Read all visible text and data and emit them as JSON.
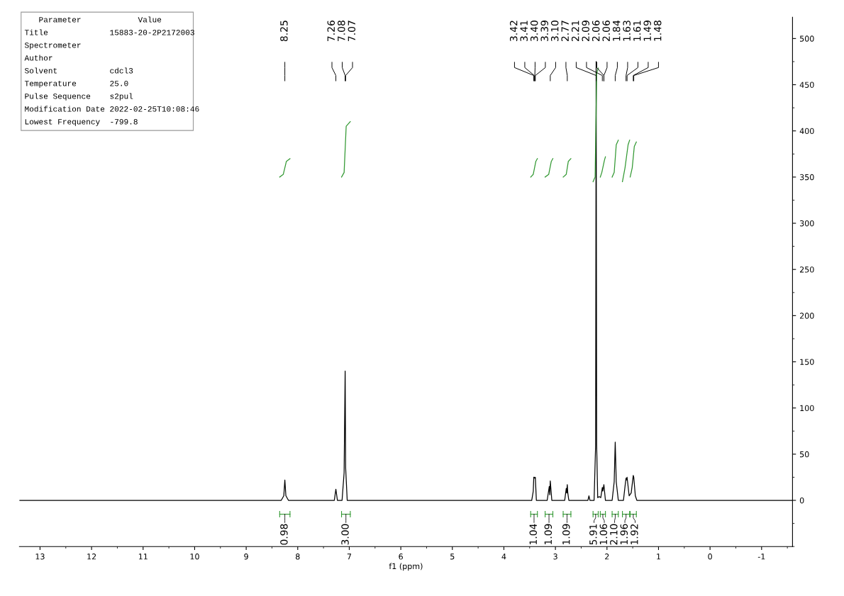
{
  "chart_data": {
    "type": "line",
    "xlabel": "f1 (ppm)",
    "xlim": [
      13.4,
      -1.6
    ],
    "ylim": [
      -50,
      523
    ],
    "xticks": [
      13,
      12,
      11,
      10,
      9,
      8,
      7,
      6,
      5,
      4,
      3,
      2,
      1,
      0,
      -1
    ],
    "yticks": [
      0,
      50,
      100,
      150,
      200,
      250,
      300,
      350,
      400,
      450,
      500
    ],
    "grid": false,
    "legend": false,
    "marker": "none",
    "line_style": "solid",
    "series": [
      {
        "color": "#000000",
        "x": [
          13.4,
          8.32,
          8.27,
          8.25,
          8.23,
          8.18,
          7.29,
          7.26,
          7.23,
          7.14,
          7.1,
          7.08,
          7.07,
          7.04,
          3.46,
          3.43,
          3.42,
          3.41,
          3.4,
          3.39,
          3.37,
          3.16,
          3.12,
          3.11,
          3.1,
          3.07,
          2.82,
          2.79,
          2.78,
          2.77,
          2.76,
          2.74,
          2.37,
          2.35,
          2.33,
          2.25,
          2.22,
          2.21,
          2.2,
          2.18,
          2.15,
          2.12,
          2.09,
          2.08,
          2.06,
          2.03,
          1.9,
          1.86,
          1.84,
          1.82,
          1.78,
          1.68,
          1.64,
          1.63,
          1.62,
          1.61,
          1.57,
          1.53,
          1.49,
          1.48,
          1.45,
          1.42,
          -1.6
        ],
        "values": [
          0,
          0,
          5,
          22,
          5,
          0,
          0,
          12,
          0,
          0,
          30,
          140,
          35,
          0,
          0,
          10,
          25,
          25,
          24,
          25,
          0,
          0,
          15,
          6,
          21,
          0,
          0,
          13,
          8,
          17,
          8,
          0,
          0,
          5,
          0,
          0,
          60,
          475,
          60,
          3,
          4,
          3,
          14,
          10,
          17,
          0,
          0,
          20,
          63,
          20,
          0,
          0,
          20,
          24,
          22,
          25,
          5,
          8,
          27,
          25,
          5,
          0,
          0
        ]
      },
      {
        "color": "#339933",
        "x": [
          8.35,
          8.28,
          8.22,
          8.15
        ],
        "values": [
          350,
          353,
          367,
          370
        ]
      },
      {
        "color": "#339933",
        "x": [
          7.15,
          7.1,
          7.06,
          6.98
        ],
        "values": [
          350,
          355,
          405,
          410
        ]
      },
      {
        "color": "#339933",
        "x": [
          3.48,
          3.43,
          3.38,
          3.35
        ],
        "values": [
          350,
          353,
          367,
          370
        ]
      },
      {
        "color": "#339933",
        "x": [
          3.2,
          3.13,
          3.08,
          3.05
        ],
        "values": [
          350,
          353,
          367,
          370
        ]
      },
      {
        "color": "#339933",
        "x": [
          2.85,
          2.79,
          2.75,
          2.7
        ],
        "values": [
          350,
          353,
          367,
          370
        ]
      },
      {
        "color": "#339933",
        "x": [
          2.27,
          2.23,
          2.2,
          2.17
        ],
        "values": [
          345,
          350,
          462,
          468
        ]
      },
      {
        "color": "#339933",
        "x": [
          2.13,
          2.1,
          2.05,
          2.03
        ],
        "values": [
          350,
          355,
          368,
          372
        ]
      },
      {
        "color": "#339933",
        "x": [
          1.9,
          1.86,
          1.82,
          1.78
        ],
        "values": [
          350,
          355,
          385,
          390
        ]
      },
      {
        "color": "#339933",
        "x": [
          1.7,
          1.65,
          1.59,
          1.56
        ],
        "values": [
          345,
          360,
          385,
          390
        ]
      },
      {
        "color": "#339933",
        "x": [
          1.55,
          1.51,
          1.47,
          1.43
        ],
        "values": [
          350,
          360,
          383,
          388
        ]
      }
    ],
    "annotations": [
      "   Parameter            Value",
      "Title             15883-20-2P2172003",
      "Spectrometer",
      "Author",
      "Solvent           cdcl3",
      "Temperature       25.0",
      "Pulse Sequence    s2pul",
      "Modification Date 2022-02-25T10:08:46",
      "Lowest Frequency  -799.8",
      "8.25",
      "7.26",
      "7.08",
      "7.07",
      "3.42",
      "3.41",
      "3.40",
      "3.39",
      "3.10",
      "2.77",
      "2.21",
      "2.09",
      "2.06",
      "2.06",
      "1.84",
      "1.63",
      "1.61",
      "1.49",
      "1.48",
      "0.98",
      "3.00",
      "1.04",
      "1.09",
      "1.09",
      "5.91",
      "1.06",
      "2.10",
      "1.96",
      "1.92"
    ]
  }
}
